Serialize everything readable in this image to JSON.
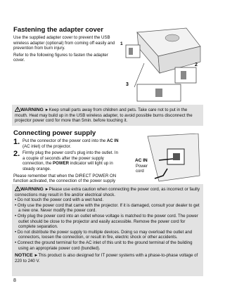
{
  "page_number": "8",
  "section1": {
    "title": "Fastening the adapter cover",
    "paragraphs": [
      "Use the supplied adapter cover to prevent the USB wireless adapter (optional) from coming off easily and prevention from burn injury.",
      "Refer to the following figures to fasten the adapter cover."
    ],
    "figure_labels": [
      "1",
      "2",
      "3"
    ]
  },
  "warning1": {
    "label": "WARNING",
    "text": "►Keep small parts away from children and pets. Take care not to put in the mouth. Heat may build up in the USB wireless adapter, to avoid possible burns disconnect the projector power cord for more than 5min. before touching it."
  },
  "section2": {
    "title": "Connecting power supply",
    "steps": [
      {
        "number": "1.",
        "parts": [
          "Put the connector of the power cord into the ",
          "AC IN",
          " (AC inlet) of the projector."
        ]
      },
      {
        "number": "2.",
        "parts": [
          "Firmly plug the power cord's plug into the outlet. In a couple of seconds after the power supply connection, the ",
          "POWER",
          " indicator will light up in steady orange."
        ]
      }
    ],
    "paragraph": "Please remember that when the DIRECT POWER ON function activated, the connection of the power supply make the projector turn on.",
    "figure_labels": [
      "AC IN",
      "Power cord"
    ]
  },
  "warning2": {
    "label": "WARNING",
    "intro": "►Please use extra caution when connecting the power cord, as incorrect or faulty connections may result in fire and/or electrical shock.",
    "bullets": [
      "• Do not touch the power cord with a wet hand.",
      "• Only use the power cord that came with the projector. If it is damaged, consult your dealer to get a new one. Never modify the power cord.",
      "• Only plug the power cord into an outlet whose voltage is matched to the power cord. The power outlet should be close to the projector and easily accessible. Remove the power cord for complete separation.",
      "• Do not distribute the power supply to multiple devices. Doing so may overload the outlet and connectors, loosen the connection, or result in fire, electric shock or other accidents.",
      "• Connect the ground terminal for the AC inlet of this unit to the ground terminal of the building using an appropriate power cord (bundled)."
    ]
  },
  "notice": {
    "label": "NOTICE",
    "text": "►This product is also designed for IT power systems with a phase-to-phase voltage of 220 to 240 V."
  }
}
